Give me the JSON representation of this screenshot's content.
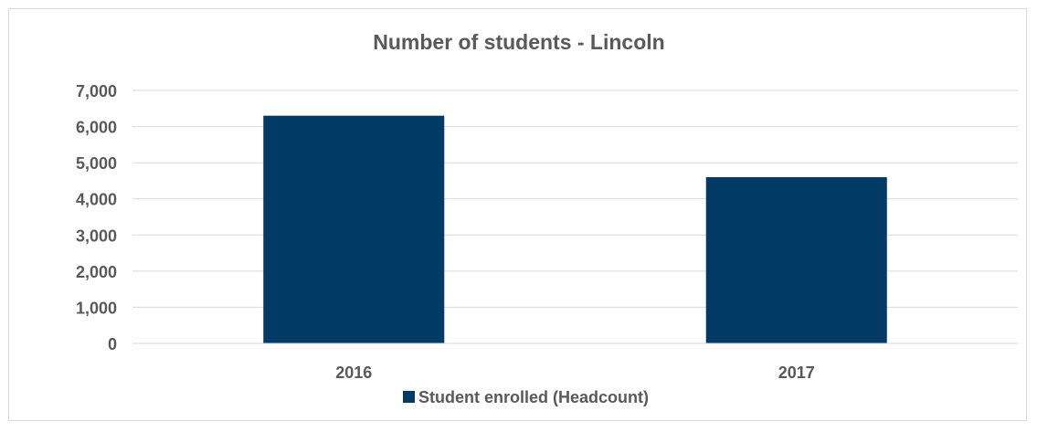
{
  "chart_data": {
    "type": "bar",
    "title": "Number of students - Lincoln",
    "xlabel": "",
    "ylabel": "",
    "categories": [
      "2016",
      "2017"
    ],
    "series": [
      {
        "name": "Student enrolled (Headcount)",
        "values": [
          6300,
          4600
        ],
        "color": "#003A65"
      }
    ],
    "ylim": [
      0,
      7000
    ],
    "yticks": [
      0,
      1000,
      2000,
      3000,
      4000,
      5000,
      6000,
      7000
    ],
    "ytick_labels": [
      "0",
      "1,000",
      "2,000",
      "3,000",
      "4,000",
      "5,000",
      "6,000",
      "7,000"
    ],
    "grid": true,
    "legend_position": "bottom",
    "colors": {
      "text": "#595959",
      "gridline": "#d9d9d9",
      "frame": "#d9d9d9"
    }
  }
}
